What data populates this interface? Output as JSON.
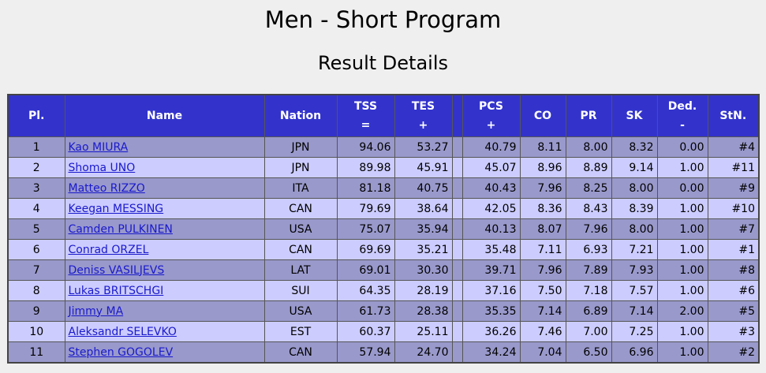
{
  "header": {
    "title": "Men - Short Program",
    "subtitle": "Result Details"
  },
  "table": {
    "columns": [
      [
        "Pl."
      ],
      [
        "Name"
      ],
      [
        "Nation"
      ],
      [
        "TSS",
        "="
      ],
      [
        "TES",
        "+"
      ],
      [
        "PCS",
        "+"
      ],
      [
        "CO"
      ],
      [
        "PR"
      ],
      [
        "SK"
      ],
      [
        "Ded.",
        "-"
      ],
      [
        "StN."
      ]
    ],
    "rows": [
      [
        "1",
        "Kao MIURA",
        "JPN",
        "94.06",
        "53.27",
        "40.79",
        "8.11",
        "8.00",
        "8.32",
        "0.00",
        "#4"
      ],
      [
        "2",
        "Shoma UNO",
        "JPN",
        "89.98",
        "45.91",
        "45.07",
        "8.96",
        "8.89",
        "9.14",
        "1.00",
        "#11"
      ],
      [
        "3",
        "Matteo RIZZO",
        "ITA",
        "81.18",
        "40.75",
        "40.43",
        "7.96",
        "8.25",
        "8.00",
        "0.00",
        "#9"
      ],
      [
        "4",
        "Keegan MESSING",
        "CAN",
        "79.69",
        "38.64",
        "42.05",
        "8.36",
        "8.43",
        "8.39",
        "1.00",
        "#10"
      ],
      [
        "5",
        "Camden PULKINEN",
        "USA",
        "75.07",
        "35.94",
        "40.13",
        "8.07",
        "7.96",
        "8.00",
        "1.00",
        "#7"
      ],
      [
        "6",
        "Conrad ORZEL",
        "CAN",
        "69.69",
        "35.21",
        "35.48",
        "7.11",
        "6.93",
        "7.21",
        "1.00",
        "#1"
      ],
      [
        "7",
        "Deniss VASILJEVS",
        "LAT",
        "69.01",
        "30.30",
        "39.71",
        "7.96",
        "7.89",
        "7.93",
        "1.00",
        "#8"
      ],
      [
        "8",
        "Lukas BRITSCHGI",
        "SUI",
        "64.35",
        "28.19",
        "37.16",
        "7.50",
        "7.18",
        "7.57",
        "1.00",
        "#6"
      ],
      [
        "9",
        "Jimmy MA",
        "USA",
        "61.73",
        "28.38",
        "35.35",
        "7.14",
        "6.89",
        "7.14",
        "2.00",
        "#5"
      ],
      [
        "10",
        "Aleksandr SELEVKO",
        "EST",
        "60.37",
        "25.11",
        "36.26",
        "7.46",
        "7.00",
        "7.25",
        "1.00",
        "#3"
      ],
      [
        "11",
        "Stephen GOGOLEV",
        "CAN",
        "57.94",
        "24.70",
        "34.24",
        "7.04",
        "6.50",
        "6.96",
        "1.00",
        "#2"
      ]
    ]
  }
}
